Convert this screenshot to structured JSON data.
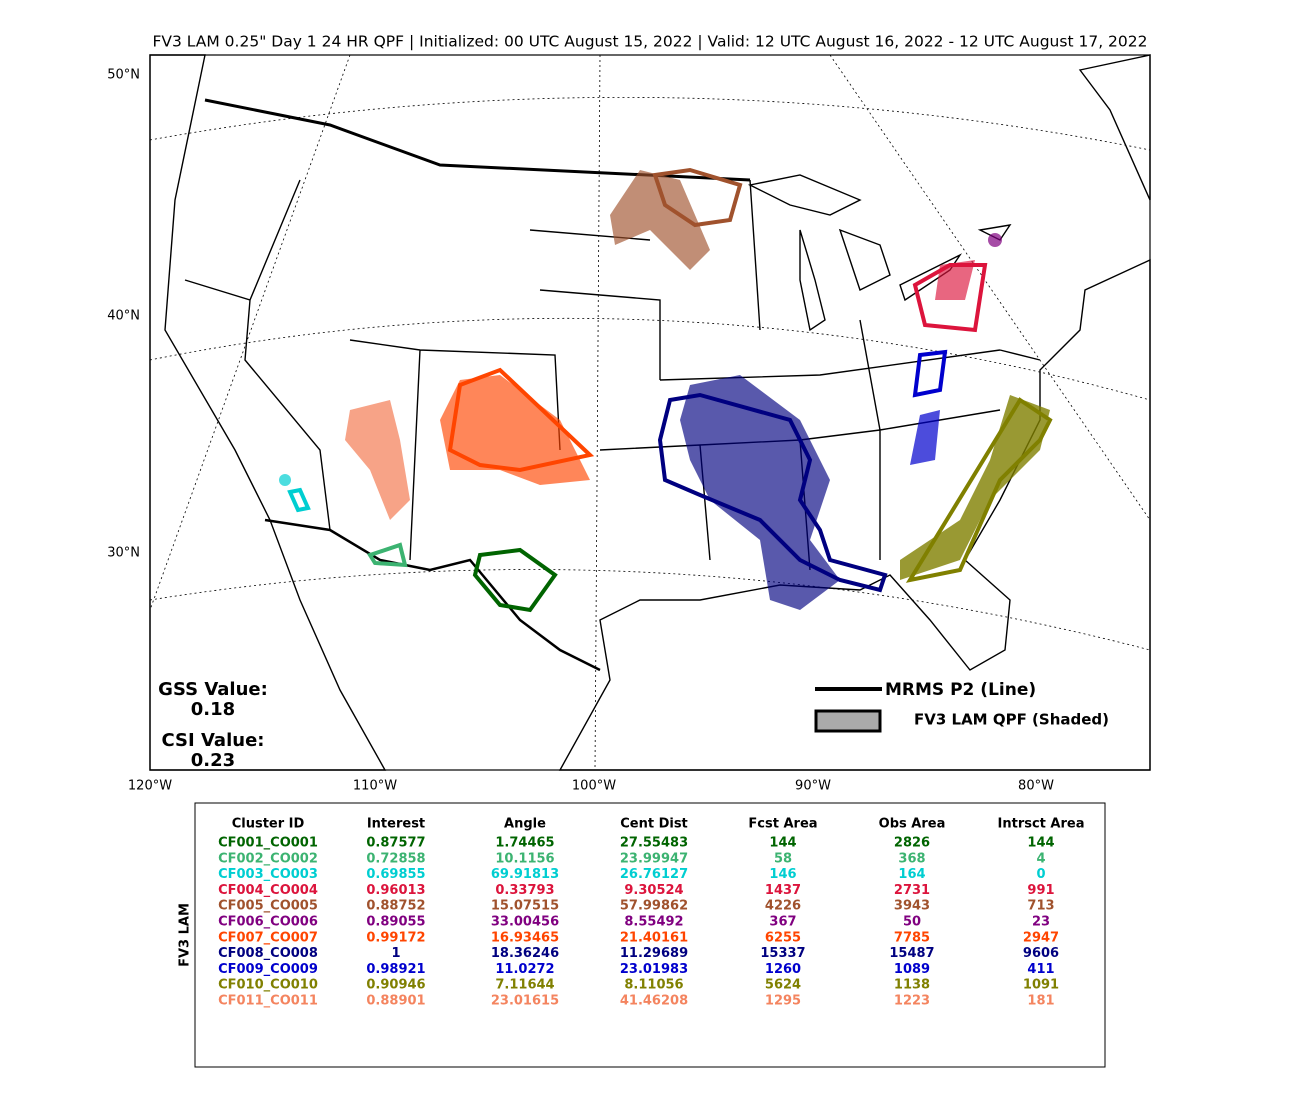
{
  "title": "FV3 LAM 0.25\" Day 1 24 HR QPF | Initialized: 00 UTC August 15, 2022 | Valid: 12 UTC August 16, 2022 - 12 UTC August 17, 2022",
  "map": {
    "lat_labels": [
      "50°N",
      "40°N",
      "30°N"
    ],
    "lon_labels": [
      "120°W",
      "110°W",
      "100°W",
      "90°W",
      "80°W"
    ],
    "scores": [
      {
        "label": "GSS Value:",
        "value": "0.18"
      },
      {
        "label": "CSI Value:",
        "value": "0.23"
      }
    ],
    "legend": [
      "MRMS P2 (Line)",
      "FV3 LAM QPF (Shaded)"
    ]
  },
  "table": {
    "side_label": "FV3 LAM",
    "columns": [
      "Cluster ID",
      "Interest",
      "Angle",
      "Cent Dist",
      "Fcst Area",
      "Obs Area",
      "Intrsct Area"
    ],
    "row_colors": [
      "#006400",
      "#3cb371",
      "#00ced1",
      "#dc143c",
      "#a0522d",
      "#800080",
      "#ff4500",
      "#000080",
      "#0000cd",
      "#808000",
      "#f4845f"
    ],
    "rows": [
      [
        "CF001_CO001",
        "0.87577",
        "1.74465",
        "27.55483",
        "144",
        "2826",
        "144"
      ],
      [
        "CF002_CO002",
        "0.72858",
        "10.1156",
        "23.99947",
        "58",
        "368",
        "4"
      ],
      [
        "CF003_CO003",
        "0.69855",
        "69.91813",
        "26.76127",
        "146",
        "164",
        "0"
      ],
      [
        "CF004_CO004",
        "0.96013",
        "0.33793",
        "9.30524",
        "1437",
        "2731",
        "991"
      ],
      [
        "CF005_CO005",
        "0.88752",
        "15.07515",
        "57.99862",
        "4226",
        "3943",
        "713"
      ],
      [
        "CF006_CO006",
        "0.89055",
        "33.00456",
        "8.55492",
        "367",
        "50",
        "23"
      ],
      [
        "CF007_CO007",
        "0.99172",
        "16.93465",
        "21.40161",
        "6255",
        "7785",
        "2947"
      ],
      [
        "CF008_CO008",
        "1",
        "18.36246",
        "11.29689",
        "15337",
        "15487",
        "9606"
      ],
      [
        "CF009_CO009",
        "0.98921",
        "11.0272",
        "23.01983",
        "1260",
        "1089",
        "411"
      ],
      [
        "CF010_CO010",
        "0.90946",
        "7.11644",
        "8.11056",
        "5624",
        "1138",
        "1091"
      ],
      [
        "CF011_CO011",
        "0.88901",
        "23.01615",
        "41.46208",
        "1295",
        "1223",
        "181"
      ]
    ]
  }
}
